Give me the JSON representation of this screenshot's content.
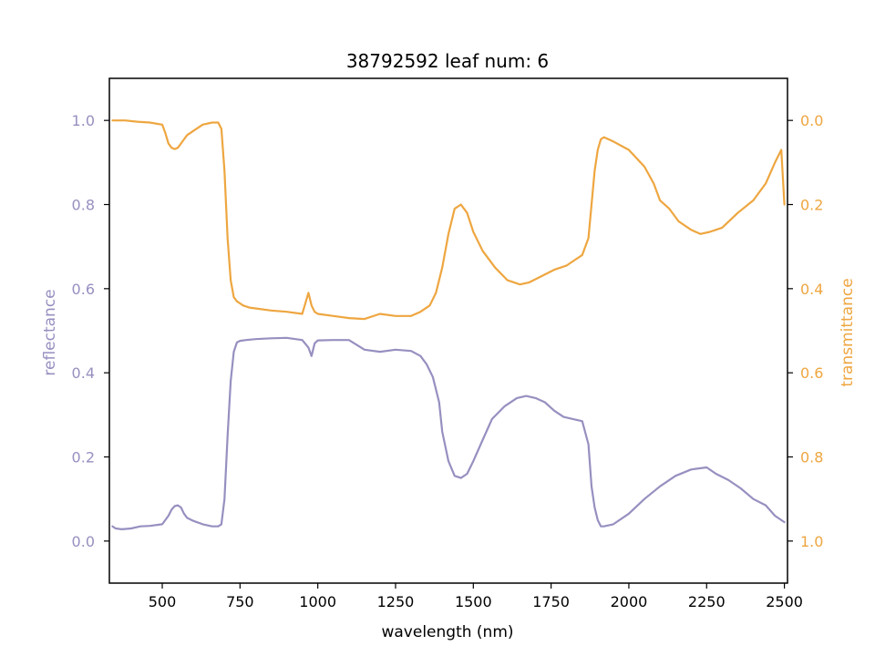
{
  "chart_data": {
    "type": "line",
    "title": "38792592 leaf num: 6",
    "xlabel": "wavelength (nm)",
    "ylabel_left": "reflectance",
    "ylabel_right": "transmittance",
    "xlim": [
      330,
      2510
    ],
    "ylim_left": [
      -0.1,
      1.1
    ],
    "ylim_right": [
      1.1,
      -0.1
    ],
    "x_ticks": [
      500,
      750,
      1000,
      1250,
      1500,
      1750,
      2000,
      2250,
      2500
    ],
    "x_tick_labels": [
      "500",
      "750",
      "1000",
      "1250",
      "1500",
      "1750",
      "2000",
      "2250",
      "2500"
    ],
    "y_left_ticks": [
      0.0,
      0.2,
      0.4,
      0.6,
      0.8,
      1.0
    ],
    "y_left_tick_labels": [
      "0.0",
      "0.2",
      "0.4",
      "0.6",
      "0.8",
      "1.0"
    ],
    "y_right_ticks": [
      0.0,
      0.2,
      0.4,
      0.6,
      0.8,
      1.0
    ],
    "y_right_tick_labels": [
      "0.0",
      "0.2",
      "0.4",
      "0.6",
      "0.8",
      "1.0"
    ],
    "grid": false,
    "colors": {
      "reflectance": "#9690c0",
      "transmittance": "#eea640",
      "axes": "#000000"
    },
    "series": [
      {
        "axis": "left",
        "x": [
          340,
          350,
          370,
          400,
          430,
          460,
          500,
          520,
          530,
          540,
          550,
          560,
          570,
          580,
          600,
          630,
          660,
          680,
          690,
          700,
          710,
          720,
          730,
          740,
          750,
          770,
          800,
          850,
          900,
          950,
          970,
          980,
          990,
          1000,
          1050,
          1100,
          1150,
          1200,
          1250,
          1300,
          1330,
          1350,
          1370,
          1390,
          1400,
          1420,
          1440,
          1460,
          1480,
          1500,
          1530,
          1560,
          1600,
          1640,
          1670,
          1700,
          1730,
          1760,
          1790,
          1820,
          1850,
          1870,
          1880,
          1890,
          1900,
          1910,
          1920,
          1950,
          2000,
          2050,
          2100,
          2150,
          2200,
          2250,
          2280,
          2320,
          2360,
          2400,
          2440,
          2470,
          2500
        ],
        "values": [
          0.035,
          0.03,
          0.028,
          0.03,
          0.035,
          0.036,
          0.04,
          0.06,
          0.075,
          0.083,
          0.085,
          0.08,
          0.065,
          0.055,
          0.048,
          0.04,
          0.035,
          0.035,
          0.04,
          0.1,
          0.25,
          0.38,
          0.45,
          0.472,
          0.476,
          0.478,
          0.48,
          0.482,
          0.483,
          0.478,
          0.46,
          0.44,
          0.47,
          0.477,
          0.478,
          0.478,
          0.455,
          0.45,
          0.455,
          0.452,
          0.44,
          0.42,
          0.39,
          0.33,
          0.26,
          0.19,
          0.155,
          0.15,
          0.16,
          0.19,
          0.24,
          0.29,
          0.32,
          0.34,
          0.345,
          0.34,
          0.33,
          0.31,
          0.295,
          0.29,
          0.285,
          0.23,
          0.13,
          0.08,
          0.05,
          0.035,
          0.035,
          0.04,
          0.065,
          0.1,
          0.13,
          0.155,
          0.17,
          0.175,
          0.16,
          0.145,
          0.125,
          0.1,
          0.085,
          0.06,
          0.045
        ]
      },
      {
        "axis": "right",
        "x": [
          340,
          350,
          380,
          420,
          460,
          500,
          510,
          520,
          530,
          540,
          550,
          560,
          570,
          580,
          600,
          630,
          660,
          680,
          690,
          700,
          710,
          720,
          730,
          740,
          750,
          760,
          780,
          800,
          850,
          900,
          950,
          970,
          980,
          990,
          1000,
          1050,
          1100,
          1150,
          1200,
          1250,
          1300,
          1330,
          1360,
          1380,
          1400,
          1420,
          1440,
          1460,
          1480,
          1500,
          1530,
          1570,
          1610,
          1650,
          1680,
          1720,
          1760,
          1800,
          1830,
          1850,
          1870,
          1880,
          1890,
          1900,
          1910,
          1920,
          1950,
          2000,
          2050,
          2080,
          2100,
          2130,
          2160,
          2200,
          2230,
          2260,
          2300,
          2350,
          2400,
          2440,
          2470,
          2490,
          2500
        ],
        "values": [
          0.0,
          0.0,
          0.0,
          0.003,
          0.005,
          0.01,
          0.03,
          0.055,
          0.065,
          0.068,
          0.065,
          0.055,
          0.045,
          0.035,
          0.025,
          0.01,
          0.005,
          0.005,
          0.02,
          0.12,
          0.28,
          0.38,
          0.42,
          0.43,
          0.435,
          0.44,
          0.445,
          0.447,
          0.452,
          0.455,
          0.46,
          0.41,
          0.44,
          0.455,
          0.46,
          0.465,
          0.47,
          0.472,
          0.46,
          0.465,
          0.465,
          0.455,
          0.44,
          0.41,
          0.35,
          0.27,
          0.21,
          0.2,
          0.22,
          0.265,
          0.31,
          0.35,
          0.38,
          0.39,
          0.385,
          0.37,
          0.355,
          0.345,
          0.33,
          0.32,
          0.28,
          0.2,
          0.12,
          0.07,
          0.045,
          0.04,
          0.05,
          0.07,
          0.11,
          0.15,
          0.19,
          0.21,
          0.24,
          0.26,
          0.27,
          0.265,
          0.255,
          0.22,
          0.19,
          0.15,
          0.1,
          0.07,
          0.2
        ]
      }
    ]
  }
}
